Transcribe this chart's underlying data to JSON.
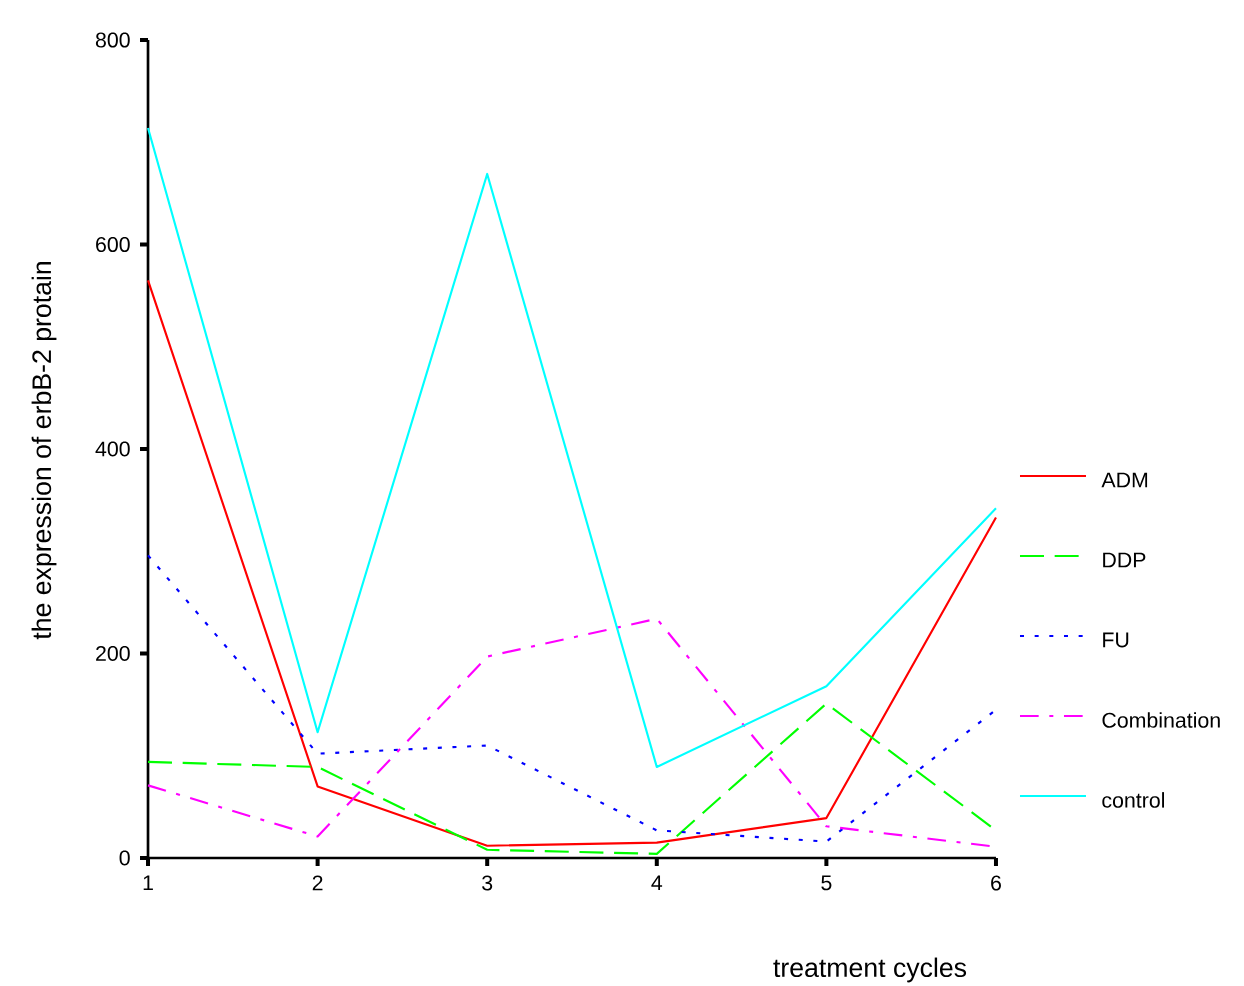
{
  "chart_data": {
    "type": "line",
    "xlabel": "treatment cycles",
    "ylabel": "the expression of erbB-2 protain",
    "x": [
      1,
      2,
      3,
      4,
      5,
      6
    ],
    "xlim": [
      1,
      6
    ],
    "ylim": [
      0,
      800
    ],
    "xticks": [
      1,
      2,
      3,
      4,
      5,
      6
    ],
    "yticks": [
      0,
      200,
      400,
      600,
      800
    ],
    "grid": false,
    "legend": "right",
    "marker": "none",
    "series": [
      {
        "name": "ADM",
        "color": "#ff0000",
        "line_style": "solid",
        "values": [
          565,
          70,
          12,
          15,
          39,
          333
        ]
      },
      {
        "name": "DDP",
        "color": "#00ff00",
        "line_style": "dashed",
        "values": [
          94,
          89,
          8,
          4,
          151,
          27
        ]
      },
      {
        "name": "FU",
        "color": "#0000ff",
        "line_style": "dotted",
        "values": [
          296,
          102,
          110,
          27,
          16,
          145
        ]
      },
      {
        "name": "Combination",
        "color": "#ff00ff",
        "line_style": "dashdot",
        "values": [
          71,
          21,
          197,
          234,
          31,
          11
        ]
      },
      {
        "name": "control",
        "color": "#00ffff",
        "line_style": "solid",
        "values": [
          714,
          123,
          669,
          89,
          168,
          342
        ]
      }
    ]
  }
}
